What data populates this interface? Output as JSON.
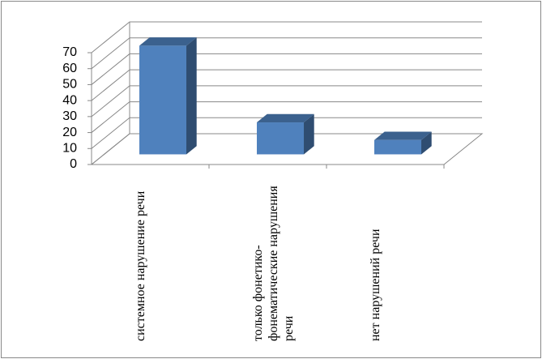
{
  "chart_data": {
    "type": "bar3d",
    "categories": [
      "системное нарушение речи",
      "только фонетико-фонематические нарушения речи",
      "нет нарушений речи"
    ],
    "values": [
      68,
      20,
      9
    ],
    "color": "#4f81bd",
    "ylim": [
      0,
      70
    ],
    "yticks": [
      0,
      10,
      20,
      30,
      40,
      50,
      60,
      70
    ],
    "grid": true
  }
}
